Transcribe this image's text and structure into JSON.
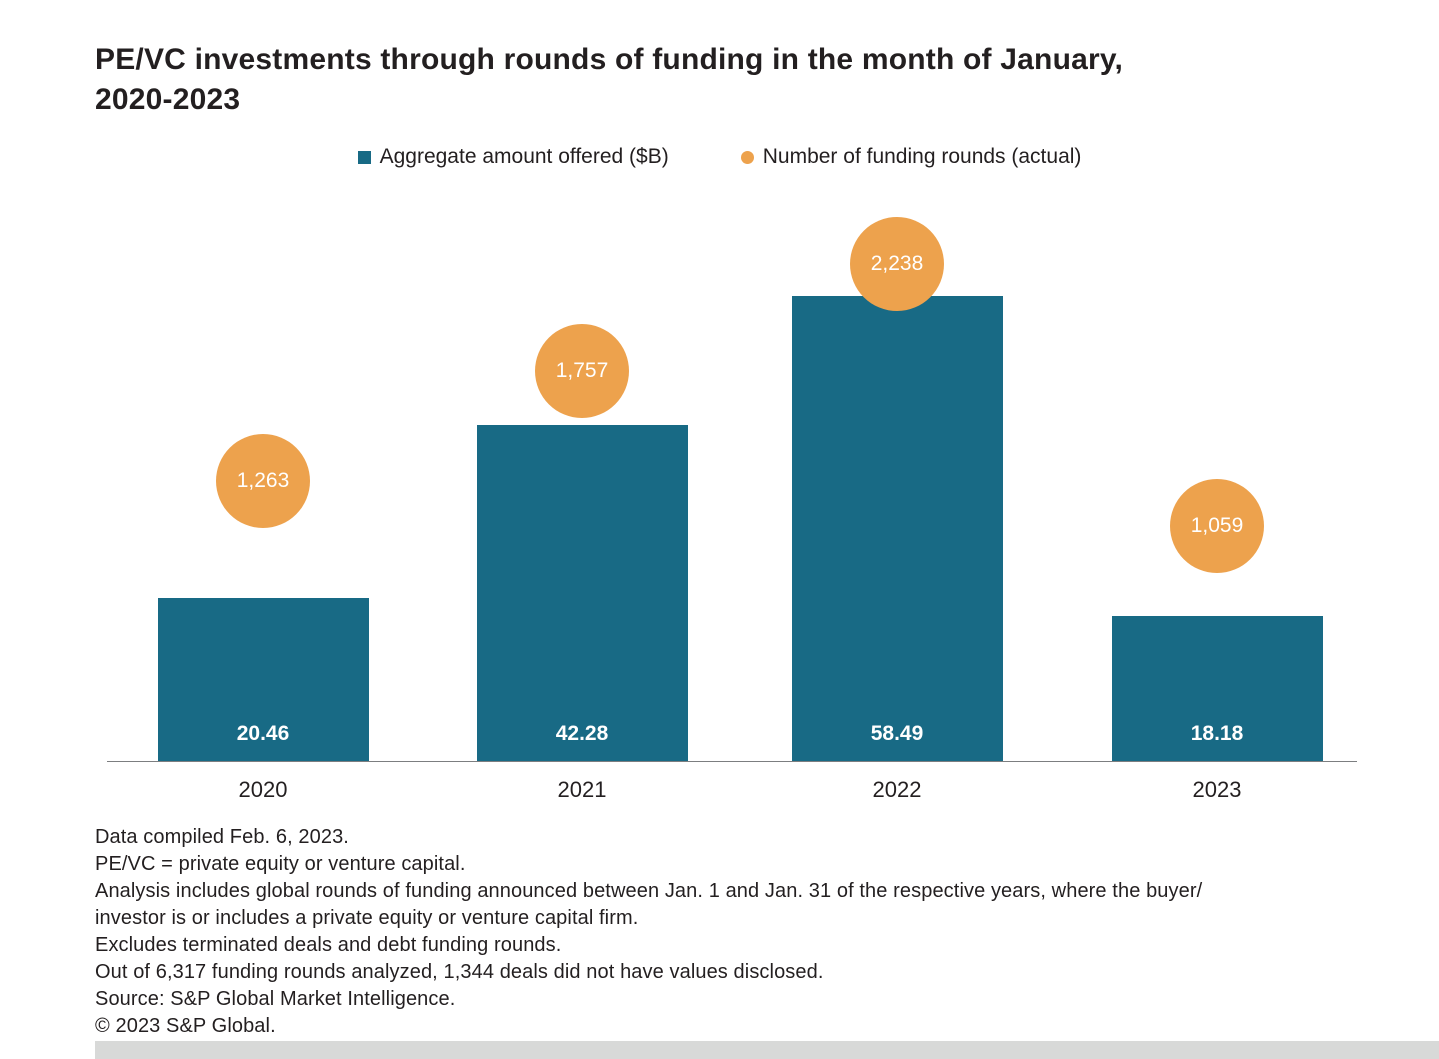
{
  "header": {
    "title_line1": "PE/VC investments through rounds of funding in the month of January,",
    "title_line2": "2020-2023"
  },
  "legend": {
    "items": [
      {
        "label": "Aggregate amount offered ($B)",
        "color": "#186A85",
        "marker": "square"
      },
      {
        "label": "Number of funding rounds (actual)",
        "color": "#EDA24D",
        "marker": "circle"
      }
    ]
  },
  "chart_data": {
    "type": "bar",
    "title": "PE/VC investments through rounds of funding in the month of January, 2020-2023",
    "categories": [
      "2020",
      "2021",
      "2022",
      "2023"
    ],
    "series": [
      {
        "name": "Aggregate amount offered ($B)",
        "type": "bar",
        "color": "#186A85",
        "values": [
          20.46,
          42.28,
          58.49,
          18.18
        ],
        "labels": [
          "20.46",
          "42.28",
          "58.49",
          "18.18"
        ]
      },
      {
        "name": "Number of funding rounds (actual)",
        "type": "point",
        "color": "#EDA24D",
        "values": [
          1263,
          1757,
          2238,
          1059
        ],
        "labels": [
          "1,263",
          "1,757",
          "2,238",
          "1,059"
        ]
      }
    ],
    "xlabel": "",
    "ylabel": "",
    "legend_position": "top",
    "gridlines": false,
    "value_axis_hidden": true
  },
  "footnotes": [
    "Data compiled Feb. 6, 2023.",
    "PE/VC = private equity or venture capital.",
    "Analysis includes global rounds of funding announced between Jan. 1 and Jan. 31 of the respective years, where the buyer/",
    "investor is or includes a private equity or venture capital firm.",
    "Excludes terminated deals and debt funding rounds.",
    "Out of 6,317 funding rounds analyzed, 1,344 deals did not have values disclosed.",
    "Source: S&P Global Market Intelligence.",
    "© 2023 S&P Global."
  ]
}
